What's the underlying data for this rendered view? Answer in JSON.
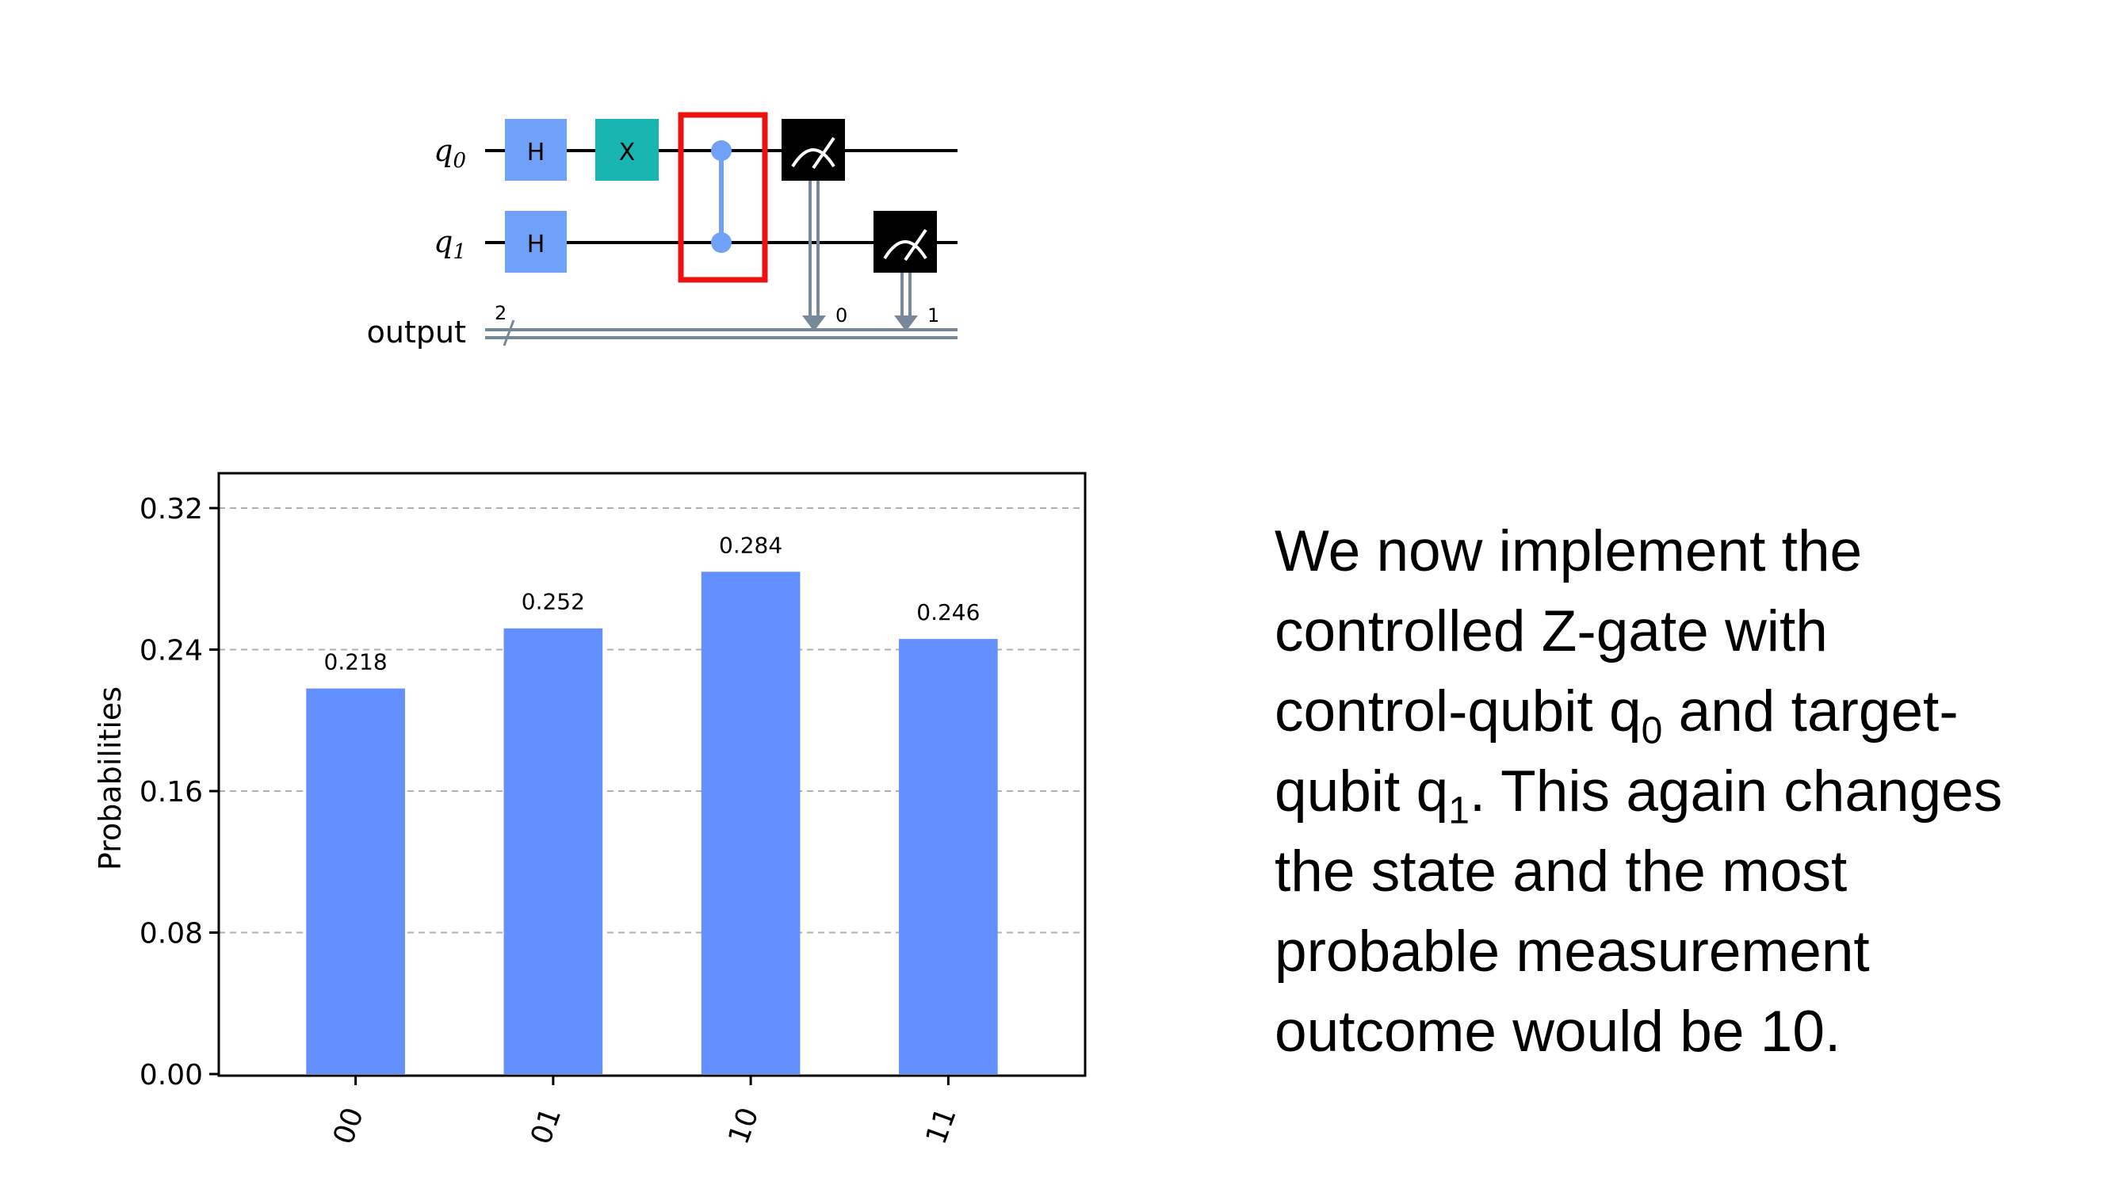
{
  "circuit": {
    "qubits": [
      {
        "name": "q",
        "index": "0"
      },
      {
        "name": "q",
        "index": "1"
      }
    ],
    "classical_register": {
      "name": "output",
      "size": "2"
    },
    "gates": [
      {
        "label": "H",
        "wire": 0
      },
      {
        "label": "H",
        "wire": 1
      },
      {
        "label": "X",
        "wire": 0
      }
    ],
    "controlled_z": {
      "control": 0,
      "target": 1,
      "highlight_color": "#ee1111"
    },
    "measurements": [
      {
        "qubit": 0,
        "bit_label": "0"
      },
      {
        "qubit": 1,
        "bit_label": "1"
      }
    ],
    "colors": {
      "h_gate": "#6ea1f7",
      "x_gate": "#18b5b3",
      "measure": "#000000",
      "control_dot": "#6ea1f7",
      "classical": "#778899"
    }
  },
  "chart_data": {
    "type": "bar",
    "categories": [
      "00",
      "01",
      "10",
      "11"
    ],
    "values": [
      0.218,
      0.252,
      0.284,
      0.246
    ],
    "value_labels": [
      "0.218",
      "0.252",
      "0.284",
      "0.246"
    ],
    "ylabel": "Probabilities",
    "yticks": [
      "0.00",
      "0.08",
      "0.16",
      "0.24",
      "0.32"
    ],
    "ylim": [
      0,
      0.32
    ],
    "grid": true,
    "bar_color": "#648fff"
  },
  "text": {
    "line1": "We now implement the",
    "line2": "controlled Z-gate with",
    "line3_a": "control-qubit q",
    "line3_sub": "0",
    "line3_b": " and target-",
    "line4_a": "qubit q",
    "line4_sub": "1",
    "line4_b": ". This again changes",
    "line5": "the state and the most",
    "line6": "probable measurement",
    "line7": "outcome would be 10."
  }
}
